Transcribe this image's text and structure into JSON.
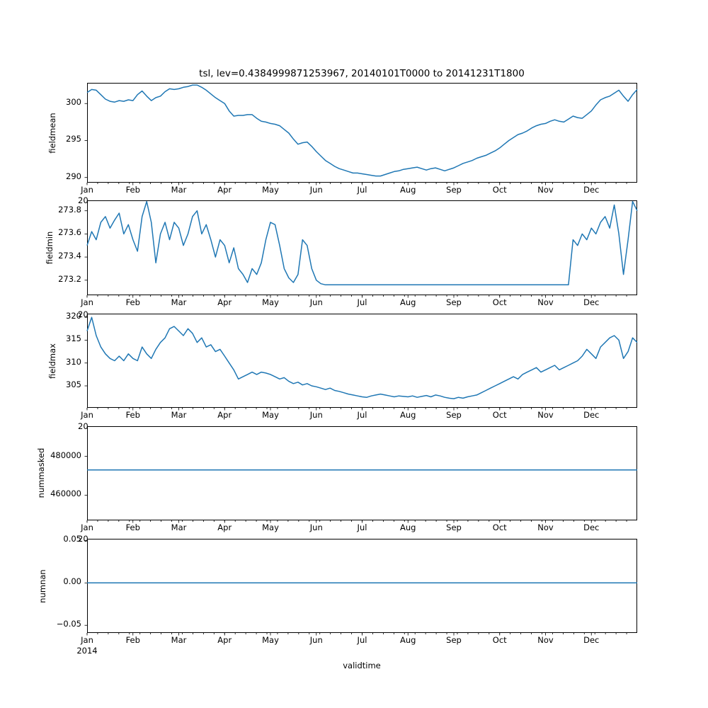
{
  "figure": {
    "background": "#ffffff",
    "year_label": "2014",
    "stray_label": "20"
  },
  "chart_data": {
    "type": "line",
    "title": "tsl, lev=0.4384999871253967, 20140101T0000 to 20141231T1800",
    "xlabel": "validtime",
    "line_color": "#1f77b4",
    "x_axis": {
      "unit": "months of 2014 (0 = Jan 1, 12 = Dec 31)",
      "xlim": [
        0,
        12
      ],
      "tick_positions": [
        0,
        1,
        2,
        3,
        4,
        5,
        6,
        7,
        8,
        9,
        10,
        11
      ],
      "tick_labels": [
        "Jan",
        "Feb",
        "Mar",
        "Apr",
        "May",
        "Jun",
        "Jul",
        "Aug",
        "Sep",
        "Oct",
        "Nov",
        "Dec"
      ],
      "year": "2014",
      "minor_tick_step": 0.23077
    },
    "subplots": [
      {
        "name": "fieldmean",
        "ylabel": "fieldmean",
        "ylim": [
          289.3,
          302.8
        ],
        "yticks": [
          {
            "v": 290,
            "label": "290"
          },
          {
            "v": 295,
            "label": "295"
          },
          {
            "v": 300,
            "label": "300"
          }
        ],
        "x_start": 0,
        "x_step": 0.1,
        "values": [
          301.5,
          301.9,
          301.8,
          301.2,
          300.6,
          300.3,
          300.2,
          300.4,
          300.3,
          300.5,
          300.4,
          301.2,
          301.7,
          301.0,
          300.4,
          300.8,
          301.0,
          301.6,
          302.0,
          301.9,
          302.0,
          302.2,
          302.3,
          302.5,
          302.5,
          302.2,
          301.8,
          301.3,
          300.8,
          300.4,
          300.0,
          299.0,
          298.3,
          298.4,
          298.4,
          298.5,
          298.5,
          298.0,
          297.6,
          297.5,
          297.3,
          297.2,
          297.0,
          296.5,
          296.0,
          295.2,
          294.5,
          294.7,
          294.8,
          294.2,
          293.5,
          292.9,
          292.3,
          291.9,
          291.5,
          291.2,
          291.0,
          290.8,
          290.6,
          290.6,
          290.5,
          290.4,
          290.3,
          290.2,
          290.2,
          290.4,
          290.6,
          290.8,
          290.9,
          291.1,
          291.2,
          291.3,
          291.4,
          291.2,
          291.0,
          291.2,
          291.3,
          291.1,
          290.9,
          291.1,
          291.3,
          291.6,
          291.9,
          292.1,
          292.3,
          292.6,
          292.8,
          293.0,
          293.3,
          293.6,
          294.0,
          294.5,
          295.0,
          295.4,
          295.8,
          296.0,
          296.3,
          296.7,
          297.0,
          297.2,
          297.3,
          297.6,
          297.8,
          297.6,
          297.5,
          297.9,
          298.3,
          298.1,
          298.0,
          298.5,
          299.0,
          299.8,
          300.5,
          300.8,
          301.0,
          301.4,
          301.8,
          301.0,
          300.3,
          301.2,
          301.9
        ]
      },
      {
        "name": "fieldmin",
        "ylabel": "fieldmin",
        "ylim": [
          273.07,
          273.89
        ],
        "yticks": [
          {
            "v": 273.2,
            "label": "273.2"
          },
          {
            "v": 273.4,
            "label": "273.4"
          },
          {
            "v": 273.6,
            "label": "273.6"
          },
          {
            "v": 273.8,
            "label": "273.8"
          }
        ],
        "stray_label": "20",
        "x_start": 0,
        "x_step": 0.1,
        "values": [
          273.5,
          273.62,
          273.55,
          273.7,
          273.75,
          273.65,
          273.72,
          273.78,
          273.6,
          273.68,
          273.55,
          273.45,
          273.75,
          273.88,
          273.7,
          273.35,
          273.6,
          273.7,
          273.55,
          273.7,
          273.65,
          273.5,
          273.6,
          273.75,
          273.8,
          273.6,
          273.68,
          273.55,
          273.4,
          273.55,
          273.5,
          273.35,
          273.48,
          273.3,
          273.25,
          273.18,
          273.3,
          273.25,
          273.35,
          273.55,
          273.7,
          273.68,
          273.5,
          273.3,
          273.22,
          273.18,
          273.25,
          273.55,
          273.5,
          273.3,
          273.2,
          273.17,
          273.16,
          273.16,
          273.16,
          273.16,
          273.16,
          273.16,
          273.16,
          273.16,
          273.16,
          273.16,
          273.16,
          273.16,
          273.16,
          273.16,
          273.16,
          273.16,
          273.16,
          273.16,
          273.16,
          273.16,
          273.16,
          273.16,
          273.16,
          273.16,
          273.16,
          273.16,
          273.16,
          273.16,
          273.16,
          273.16,
          273.16,
          273.16,
          273.16,
          273.16,
          273.16,
          273.16,
          273.16,
          273.16,
          273.16,
          273.16,
          273.16,
          273.16,
          273.16,
          273.16,
          273.16,
          273.16,
          273.16,
          273.16,
          273.16,
          273.16,
          273.16,
          273.16,
          273.16,
          273.16,
          273.55,
          273.5,
          273.6,
          273.55,
          273.65,
          273.6,
          273.7,
          273.75,
          273.65,
          273.85,
          273.6,
          273.25,
          273.55,
          273.88,
          273.8
        ]
      },
      {
        "name": "fieldmax",
        "ylabel": "fieldmax",
        "ylim": [
          300.2,
          320.8
        ],
        "yticks": [
          {
            "v": 305,
            "label": "305"
          },
          {
            "v": 310,
            "label": "310"
          },
          {
            "v": 315,
            "label": "315"
          },
          {
            "v": 320,
            "label": "320"
          }
        ],
        "stray_label": "20",
        "x_start": 0,
        "x_step": 0.1,
        "values": [
          317.0,
          320.0,
          316.0,
          313.5,
          312.0,
          311.0,
          310.5,
          311.5,
          310.5,
          312.0,
          311.0,
          310.5,
          313.5,
          312.0,
          311.0,
          313.0,
          314.5,
          315.5,
          317.5,
          318.0,
          317.0,
          316.0,
          317.5,
          316.5,
          314.5,
          315.5,
          313.5,
          314.0,
          312.5,
          313.0,
          311.5,
          310.0,
          308.5,
          306.5,
          307.0,
          307.5,
          308.0,
          307.5,
          308.0,
          307.8,
          307.5,
          307.0,
          306.5,
          306.8,
          306.0,
          305.5,
          305.8,
          305.2,
          305.5,
          305.0,
          304.8,
          304.5,
          304.2,
          304.5,
          304.0,
          303.8,
          303.5,
          303.2,
          303.0,
          302.8,
          302.6,
          302.5,
          302.8,
          303.0,
          303.2,
          303.0,
          302.8,
          302.6,
          302.8,
          302.7,
          302.6,
          302.8,
          302.5,
          302.7,
          302.9,
          302.6,
          303.0,
          302.8,
          302.5,
          302.3,
          302.2,
          302.5,
          302.3,
          302.6,
          302.8,
          303.0,
          303.5,
          304.0,
          304.5,
          305.0,
          305.5,
          306.0,
          306.5,
          307.0,
          306.5,
          307.5,
          308.0,
          308.5,
          309.0,
          308.0,
          308.5,
          309.0,
          309.5,
          308.5,
          309.0,
          309.5,
          310.0,
          310.5,
          311.5,
          313.0,
          312.0,
          311.0,
          313.5,
          314.5,
          315.5,
          316.0,
          315.0,
          311.0,
          312.5,
          315.5,
          314.5
        ]
      },
      {
        "name": "nummasked",
        "ylabel": "nummasked",
        "ylim": [
          447000,
          495500
        ],
        "yticks": [
          {
            "v": 460000,
            "label": "460000"
          },
          {
            "v": 480000,
            "label": "480000"
          }
        ],
        "stray_label": "20",
        "x": [
          0,
          12
        ],
        "values": [
          473000,
          473000
        ]
      },
      {
        "name": "numnan",
        "ylabel": "numnan",
        "ylim": [
          -0.059,
          0.052
        ],
        "yticks": [
          {
            "v": -0.05,
            "label": "−0.05"
          },
          {
            "v": 0.0,
            "label": "0.00"
          },
          {
            "v": 0.05,
            "label": "0.05"
          }
        ],
        "stray_label": "20",
        "x": [
          0,
          12
        ],
        "values": [
          0,
          0
        ]
      }
    ]
  }
}
